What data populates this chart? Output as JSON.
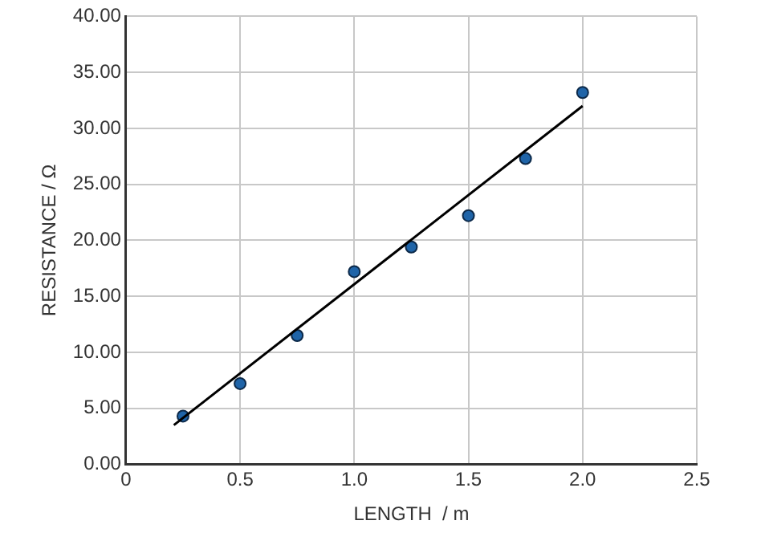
{
  "chart_data": {
    "type": "scatter",
    "xlabel": "LENGTH  / m",
    "ylabel": "RESISTANCE / Ω",
    "xlim": [
      0,
      2.5
    ],
    "ylim": [
      0,
      40
    ],
    "xticks": [
      0,
      0.5,
      {
        "value": 1,
        "label": "1.0"
      },
      1.5,
      {
        "value": 2,
        "label": "2.0"
      },
      2.5
    ],
    "yticks": [
      {
        "value": 0,
        "label": "0.00"
      },
      {
        "value": 5,
        "label": "5.00"
      },
      {
        "value": 10,
        "label": "10.00"
      },
      {
        "value": 15,
        "label": "15.00"
      },
      {
        "value": 20,
        "label": "20.00"
      },
      {
        "value": 25,
        "label": "25.00"
      },
      {
        "value": 30,
        "label": "30.00"
      },
      {
        "value": 35,
        "label": "35.00"
      },
      {
        "value": 40,
        "label": "40.00"
      }
    ],
    "grid": true,
    "marker": "circle",
    "series": [
      {
        "color": "#1f64a8",
        "x": [
          0.25,
          0.5,
          0.75,
          1.0,
          1.25,
          1.5,
          1.75,
          2.0
        ],
        "values": [
          4.3,
          7.2,
          11.5,
          17.2,
          19.4,
          22.2,
          27.3,
          33.2
        ]
      },
      {
        "type": "line",
        "color": "#000000",
        "x": [
          0.21,
          2.0
        ],
        "values": [
          3.5,
          32.0
        ],
        "marker": "none"
      }
    ]
  }
}
